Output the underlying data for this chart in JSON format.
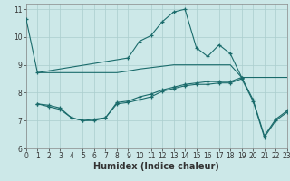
{
  "line1_x": [
    0,
    1,
    9,
    10,
    11,
    12,
    13,
    14,
    15,
    16,
    17,
    18,
    19
  ],
  "line1_y": [
    10.65,
    8.72,
    9.25,
    9.85,
    10.05,
    10.55,
    10.9,
    11.0,
    9.62,
    9.3,
    9.72,
    9.4,
    8.55
  ],
  "line2_x": [
    1,
    2,
    3,
    4,
    5,
    6,
    7,
    8,
    9,
    10,
    11,
    12,
    13,
    14,
    15,
    16,
    17,
    18,
    19,
    20,
    21,
    22,
    23
  ],
  "line2_y": [
    8.72,
    8.72,
    8.72,
    8.72,
    8.72,
    8.72,
    8.72,
    8.72,
    8.78,
    8.85,
    8.9,
    8.95,
    9.0,
    9.0,
    9.0,
    9.0,
    9.0,
    9.0,
    8.55,
    8.55,
    8.55,
    8.55,
    8.55
  ],
  "line3_x": [
    1,
    2,
    3,
    4,
    5,
    6,
    7,
    8,
    9,
    10,
    11,
    12,
    13,
    14,
    15,
    16,
    17,
    18,
    19,
    20,
    21,
    22,
    23
  ],
  "line3_y": [
    7.6,
    7.55,
    7.45,
    7.1,
    7.0,
    7.05,
    7.1,
    7.65,
    7.7,
    7.85,
    7.95,
    8.1,
    8.2,
    8.3,
    8.35,
    8.4,
    8.4,
    8.4,
    8.55,
    7.75,
    6.45,
    7.05,
    7.35
  ],
  "line4_x": [
    1,
    2,
    3,
    4,
    5,
    6,
    7,
    8,
    9,
    10,
    11,
    12,
    13,
    14,
    15,
    16,
    17,
    18,
    19,
    20,
    21,
    22,
    23
  ],
  "line4_y": [
    7.6,
    7.5,
    7.4,
    7.1,
    7.0,
    7.0,
    7.1,
    7.6,
    7.65,
    7.75,
    7.85,
    8.05,
    8.15,
    8.25,
    8.3,
    8.3,
    8.35,
    8.35,
    8.5,
    7.7,
    6.4,
    7.0,
    7.3
  ],
  "bg_color": "#cce8e8",
  "line_color": "#1a6b6b",
  "grid_color": "#aacece",
  "xlabel": "Humidex (Indice chaleur)",
  "ylim": [
    6.0,
    11.2
  ],
  "xlim": [
    0,
    23
  ],
  "yticks": [
    6,
    7,
    8,
    9,
    10,
    11
  ],
  "xticks": [
    0,
    1,
    2,
    3,
    4,
    5,
    6,
    7,
    8,
    9,
    10,
    11,
    12,
    13,
    14,
    15,
    16,
    17,
    18,
    19,
    20,
    21,
    22,
    23
  ],
  "xlabel_fontsize": 7,
  "tick_fontsize": 5.5
}
